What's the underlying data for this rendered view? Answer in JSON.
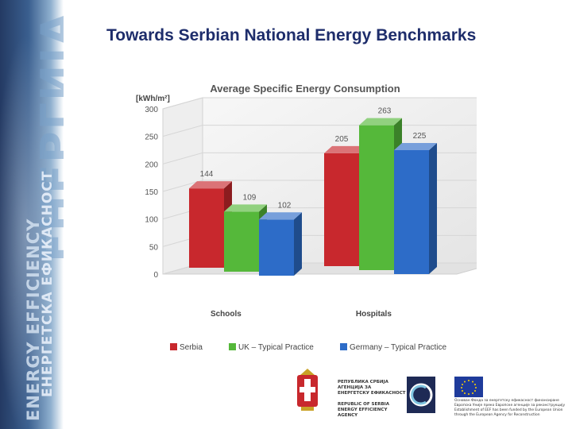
{
  "slide": {
    "title": "Towards Serbian National Energy Benchmarks",
    "band_text_en": "ENERGY EFFICIENCY",
    "band_text_sr": "ЕНЕРГЕТСКА ЕФИКАСНОСТ",
    "band_text_big": "ЕНЕРГИЈА"
  },
  "chart_data": {
    "type": "bar",
    "title": "Average Specific Energy Consumption",
    "ylabel": "[kWh/m²]",
    "xlabel": "",
    "ylim": [
      0,
      300
    ],
    "yticks": [
      0,
      50,
      100,
      150,
      200,
      250,
      300
    ],
    "categories": [
      "Schools",
      "Hospitals"
    ],
    "series": [
      {
        "name": "Serbia",
        "values": [
          144,
          205
        ],
        "color": "#c8282d"
      },
      {
        "name": "UK – Typical Practice",
        "values": [
          109,
          263
        ],
        "color": "#55b83a"
      },
      {
        "name": "Germany – Typical Practice",
        "values": [
          102,
          225
        ],
        "color": "#2d6cc8"
      }
    ],
    "legend_position": "bottom",
    "grid": true,
    "style": "3d"
  },
  "footer": {
    "agency_text": "РЕПУБЛИКА СРБИЈА\nАГЕНЦИЈА ЗА\nЕНЕРГЕТСКУ ЕФИКАСНОСТ\n\nREPUBLIC OF SERBIA\nENERGY EFFICIENCY\nAGENCY",
    "eu_text": "Основан Фонда за енергетску ефикасност финансиране\nЕвропска Уније преко Европске агенције за реконструкцију\nEstablishment of EEF has been funded by the European Union\nthrough the European Agency for Reconstruction"
  }
}
